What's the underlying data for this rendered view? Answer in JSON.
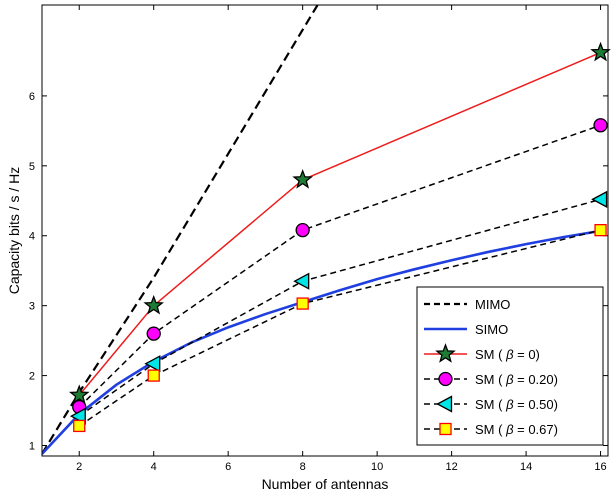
{
  "chart_data": {
    "type": "line",
    "xlabel": "Number of antennas",
    "ylabel": "Capacity  bits / s / Hz",
    "xlim": [
      1,
      16.2
    ],
    "ylim": [
      0.85,
      7.3
    ],
    "xticks": [
      2,
      4,
      6,
      8,
      10,
      12,
      14,
      16
    ],
    "yticks": [
      1,
      2,
      3,
      4,
      5,
      6
    ],
    "grid": false,
    "legend_position": "bottom-right",
    "series": [
      {
        "name": "MIMO",
        "color": "#000000",
        "line": "dashed",
        "marker": "none",
        "x": [
          1,
          2,
          4,
          8.4
        ],
        "y": [
          0.88,
          1.76,
          3.4,
          7.3
        ]
      },
      {
        "name": "SIMO",
        "color": "#1f3fe0",
        "line": "solid",
        "marker": "none",
        "x": [
          1,
          2,
          3,
          4,
          5,
          6,
          7,
          8,
          9,
          10,
          11,
          12,
          13,
          14,
          15,
          16
        ],
        "y": [
          0.88,
          1.45,
          1.87,
          2.2,
          2.47,
          2.69,
          2.88,
          3.05,
          3.22,
          3.38,
          3.52,
          3.65,
          3.77,
          3.88,
          3.98,
          4.07
        ]
      },
      {
        "name_prefix": "SM ( ",
        "name_symbol": "β",
        "name_suffix": " = 0)",
        "color": "#ee1c1c",
        "line": "solid",
        "marker": "star",
        "marker_fill": "#1e7b34",
        "x": [
          2,
          4,
          8,
          16
        ],
        "y": [
          1.72,
          3.0,
          4.8,
          6.62
        ]
      },
      {
        "name_prefix": "SM ( ",
        "name_symbol": "β",
        "name_suffix": " = 0.20)",
        "color": "#000000",
        "line": "dashed",
        "marker": "circle",
        "marker_fill": "#ff00ff",
        "x": [
          2,
          4,
          8,
          16
        ],
        "y": [
          1.55,
          2.6,
          4.08,
          5.58
        ]
      },
      {
        "name_prefix": "SM ( ",
        "name_symbol": "β",
        "name_suffix": " = 0.50)",
        "color": "#000000",
        "line": "dashed",
        "marker": "triangle-left",
        "marker_fill": "#00e5e5",
        "x": [
          2,
          4,
          8,
          16
        ],
        "y": [
          1.42,
          2.17,
          3.35,
          4.52
        ]
      },
      {
        "name_prefix": "SM ( ",
        "name_symbol": "β",
        "name_suffix": " = 0.67)",
        "color": "#000000",
        "line": "dashed",
        "marker": "square",
        "marker_fill": "#ffff00",
        "marker_edge": "#ff0000",
        "x": [
          2,
          4,
          8,
          16
        ],
        "y": [
          1.28,
          2.0,
          3.03,
          4.08
        ]
      }
    ]
  }
}
